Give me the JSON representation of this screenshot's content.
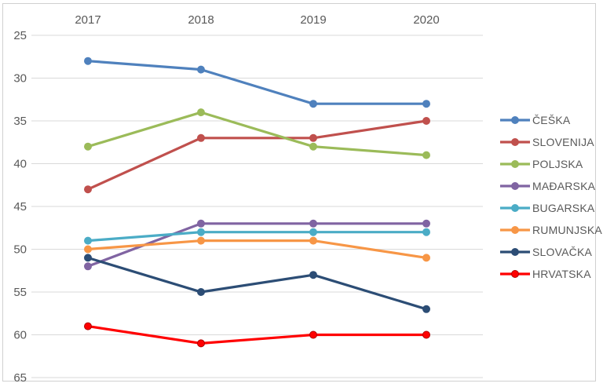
{
  "window": {
    "background": "#FFFFFF",
    "frame_border": "#D0D0D0"
  },
  "chart_data": {
    "type": "line",
    "title": "",
    "categories": [
      "2017",
      "2018",
      "2019",
      "2020"
    ],
    "x_axis_labels_position": "top",
    "y_axis": {
      "min": 25,
      "max": 65,
      "step": 5,
      "reversed": true,
      "tick_labels": [
        "25",
        "30",
        "35",
        "40",
        "45",
        "50",
        "55",
        "60",
        "65"
      ]
    },
    "grid": true,
    "grid_color": "#D9D9D9",
    "axis_text_color": "#595959",
    "legend_position": "right",
    "series": [
      {
        "id": "ceska",
        "name": "ČEŠKA",
        "color": "#4F81BD",
        "values": [
          28,
          29,
          33,
          33
        ]
      },
      {
        "id": "slovenija",
        "name": "SLOVENIJA",
        "color": "#C0504D",
        "values": [
          43,
          37,
          37,
          35
        ]
      },
      {
        "id": "poljska",
        "name": "POLJSKA",
        "color": "#9BBB59",
        "values": [
          38,
          34,
          38,
          39
        ]
      },
      {
        "id": "madarska",
        "name": "MAĐARSKA",
        "color": "#8064A2",
        "values": [
          52,
          47,
          47,
          47
        ]
      },
      {
        "id": "bugarska",
        "name": "BUGARSKA",
        "color": "#4BACC6",
        "values": [
          49,
          48,
          48,
          48
        ]
      },
      {
        "id": "rumunjska",
        "name": "RUMUNJSKA",
        "color": "#F79646",
        "values": [
          50,
          49,
          49,
          51
        ]
      },
      {
        "id": "slovacka",
        "name": "SLOVAČKA",
        "color": "#2C4D75",
        "values": [
          51,
          55,
          53,
          57
        ]
      },
      {
        "id": "hrvatska",
        "name": "HRVATSKA",
        "color": "#FF0000",
        "marker_border": "#B00000",
        "values": [
          59,
          61,
          60,
          60
        ]
      }
    ]
  }
}
